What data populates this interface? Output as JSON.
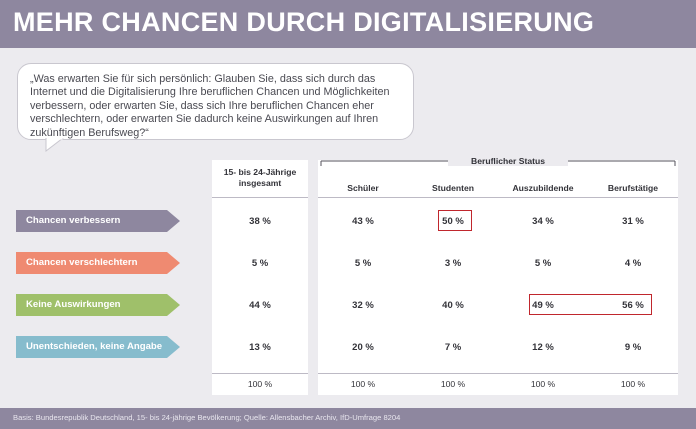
{
  "title": "MEHR CHANCEN DURCH DIGITALISIERUNG",
  "question": "„Was erwarten Sie für sich persönlich: Glauben Sie, dass sich durch das Internet und die Digitalisierung Ihre beruflichen Chancen und Möglichkeiten verbessern, oder erwarten Sie, dass sich Ihre beruflichen Chancen eher verschlechtern, oder erwarten Sie dadurch keine Auswirkungen auf Ihren zukünftigen Berufsweg?“",
  "footer": "Basis: Bundesrepublik Deutschland, 15- bis 24-jährige Bevölkerung; Quelle: Allensbacher Archiv, IfD-Umfrage 8204",
  "colors": {
    "header": "#8e879f",
    "label_verbessern": "#8e879f",
    "label_verschlechtern": "#ef8a71",
    "label_keine": "#9fc06a",
    "label_unentschieden": "#86bccd",
    "highlight": "#c0272d"
  },
  "chart_data": {
    "type": "table",
    "title": "MEHR CHANCEN DURCH DIGITALISIERUNG",
    "group_header": "Beruflicher Status",
    "total_column": {
      "line1": "15- bis 24-Jährige",
      "line2": "insgesamt"
    },
    "columns": [
      "Schüler",
      "Studenten",
      "Auszubildende",
      "Berufstätige"
    ],
    "rows": [
      {
        "label": "Chancen verbessern",
        "total": "38 %",
        "values": [
          "43 %",
          "50 %",
          "34 %",
          "31 %"
        ]
      },
      {
        "label": "Chancen verschlechtern",
        "total": "5 %",
        "values": [
          "5 %",
          "3 %",
          "5 %",
          "4 %"
        ]
      },
      {
        "label": "Keine Auswirkungen",
        "total": "44 %",
        "values": [
          "32 %",
          "40 %",
          "49 %",
          "56 %"
        ]
      },
      {
        "label": "Unentschieden, keine Angabe",
        "total": "13 %",
        "values": [
          "20 %",
          "7 %",
          "12 %",
          "9 %"
        ]
      }
    ],
    "totals_row": {
      "total": "100 %",
      "values": [
        "100 %",
        "100 %",
        "100 %",
        "100 %"
      ]
    },
    "highlighted": [
      {
        "row": 0,
        "col": "Studenten"
      },
      {
        "row": 2,
        "col": "Auszubildende"
      },
      {
        "row": 2,
        "col": "Berufstätige"
      }
    ]
  }
}
